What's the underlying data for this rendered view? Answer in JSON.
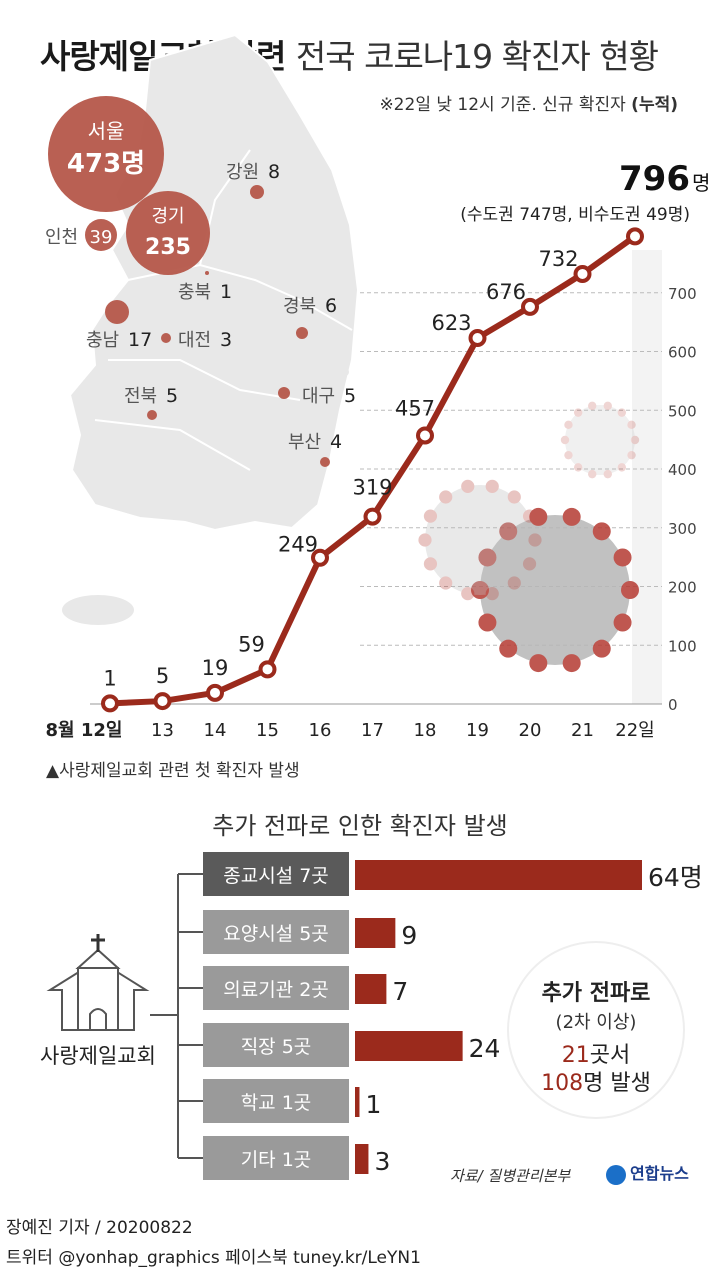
{
  "header": {
    "title_bold": "사랑제일교회 관련",
    "title_rest": "전국 코로나19 확진자 현황",
    "note_prefix": "※22일 낮 12시 기준. 신규 확진자 ",
    "note_bold": "(누적)"
  },
  "colors": {
    "accent": "#9b2a1c",
    "bubble": "#b5574a",
    "map": "#e8e8e8",
    "label_box": "#9a9a9a",
    "label_box_dark": "#5a5a5a"
  },
  "map_regions": [
    {
      "name": "서울",
      "value": "473명",
      "size": "xl"
    },
    {
      "name": "경기",
      "value": "235",
      "size": "lg"
    },
    {
      "name": "인천",
      "value": "39",
      "size": "md"
    },
    {
      "name": "강원",
      "value": "8",
      "size": "sm"
    },
    {
      "name": "충북",
      "value": "1",
      "size": "xs"
    },
    {
      "name": "충남",
      "value": "17",
      "size": "sm"
    },
    {
      "name": "대전",
      "value": "3",
      "size": "xs"
    },
    {
      "name": "경북",
      "value": "6",
      "size": "sm"
    },
    {
      "name": "전북",
      "value": "5",
      "size": "sm"
    },
    {
      "name": "대구",
      "value": "5",
      "size": "sm"
    },
    {
      "name": "부산",
      "value": "4",
      "size": "xs"
    }
  ],
  "chart_data": [
    {
      "type": "line",
      "x": [
        "8월 12일",
        "13",
        "14",
        "15",
        "16",
        "17",
        "18",
        "19",
        "20",
        "21",
        "22일"
      ],
      "series": [
        {
          "values": [
            1,
            5,
            19,
            59,
            249,
            319,
            457,
            623,
            676,
            732,
            796
          ]
        }
      ],
      "point_labels": [
        "1",
        "5",
        "19",
        "59",
        "249",
        "319",
        "457",
        "623",
        "676",
        "732",
        "796명"
      ],
      "yticks": [
        "0",
        "100",
        "200",
        "300",
        "400",
        "500",
        "600",
        "700"
      ],
      "ylim": [
        0,
        800
      ],
      "grid": true,
      "last_note": "(수도권 747명, 비수도권 49명)",
      "first_note": "▲사랑제일교회 관련 첫 확진자 발생"
    },
    {
      "type": "bar",
      "title": "추가 전파로 인한 확진자 발생",
      "root_label": "사랑제일교회",
      "categories": [
        "종교시설 7곳",
        "요양시설 5곳",
        "의료기관 2곳",
        "직장 5곳",
        "학교 1곳",
        "기타 1곳"
      ],
      "values": [
        64,
        9,
        7,
        24,
        1,
        3
      ],
      "value_labels": [
        "64명",
        "9",
        "7",
        "24",
        "1",
        "3"
      ]
    }
  ],
  "summary": {
    "title": "추가 전파로",
    "subtitle": "(2차 이상)",
    "line1_num": "21",
    "line1_rest": "곳서",
    "line2_num": "108",
    "line2_rest": "명 발생"
  },
  "footer": {
    "source": "자료/ 질병관리본부",
    "logo": "연합뉴스",
    "byline": "장예진 기자 / 20200822",
    "social": "트위터 @yonhap_graphics  페이스북 tuney.kr/LeYN1"
  }
}
